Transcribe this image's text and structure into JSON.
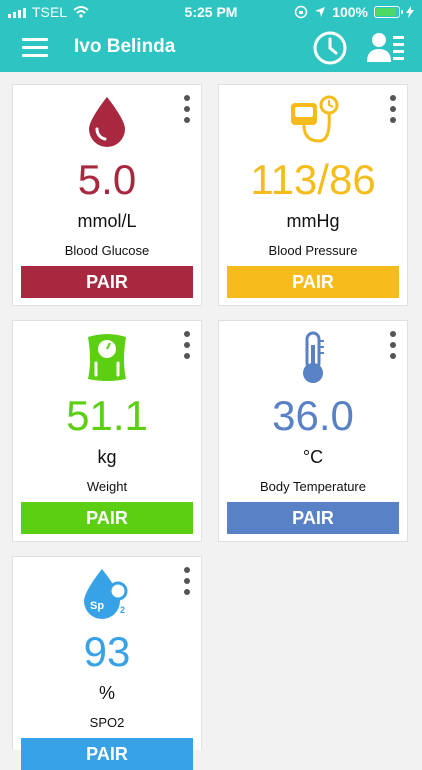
{
  "status_bar": {
    "carrier": "TSEL",
    "time": "5:25 PM",
    "battery": "100%"
  },
  "header": {
    "user_name": "Ivo Belinda"
  },
  "cards": [
    {
      "value": "5.0",
      "unit": "mmol/L",
      "label": "Blood Glucose",
      "button": "PAIR",
      "color": "#a8293f"
    },
    {
      "value": "113/86",
      "unit": "mmHg",
      "label": "Blood Pressure",
      "button": "PAIR",
      "color": "#f5bc1c"
    },
    {
      "value": "51.1",
      "unit": "kg",
      "label": "Weight",
      "button": "PAIR",
      "color": "#5ccf12"
    },
    {
      "value": "36.0",
      "unit": "°C",
      "label": "Body Temperature",
      "button": "PAIR",
      "color": "#5981c5"
    },
    {
      "value": "93",
      "unit": "%",
      "label": "SPO2",
      "button": "PAIR",
      "color": "#37a2e6"
    }
  ]
}
